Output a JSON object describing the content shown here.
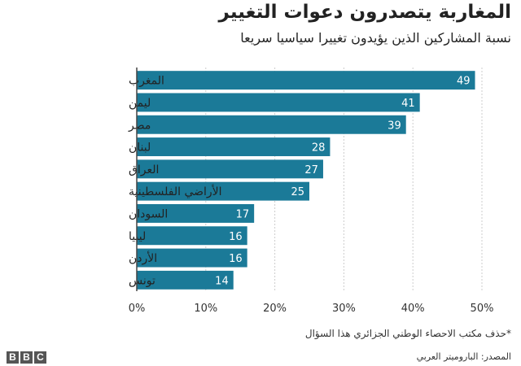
{
  "title": "المغاربة يتصدرون دعوات التغيير",
  "subtitle": "نسبة المشاركين الذين يؤيدون تغييرا سياسيا سريعا",
  "footnote": "*حذف مكتب الاحصاء الوطني الجزائري هذا السؤال",
  "source": "المصدر: الباروميتر العربي",
  "logo": {
    "letters": [
      "B",
      "B",
      "C"
    ]
  },
  "colors": {
    "bar": "#1b7a98",
    "axis": "#444444",
    "grid": "#cccccc",
    "label": "#ffffff"
  },
  "chart_data": {
    "type": "bar",
    "orientation": "horizontal",
    "categories": [
      "المغرب",
      "ليمن",
      "مصر",
      "لبنان",
      "العراق",
      "الأراضي الفلسطينية",
      "السودان",
      "ليبيا",
      "الأردن",
      "تونس"
    ],
    "values": [
      49,
      41,
      39,
      28,
      27,
      25,
      17,
      16,
      16,
      14
    ],
    "xlim": [
      0,
      50
    ],
    "xticks": [
      0,
      10,
      20,
      30,
      40,
      50
    ],
    "tick_format": "{v}%",
    "grid": true,
    "data_labels": true
  }
}
